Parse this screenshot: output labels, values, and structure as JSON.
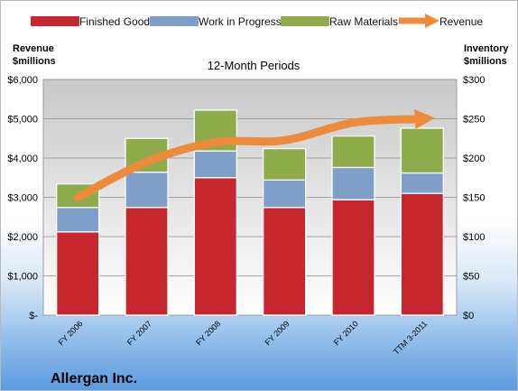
{
  "colors": {
    "finished_goods": "#c6262e",
    "work_in_progress": "#7f9fc9",
    "raw_materials": "#8fac4a",
    "revenue": "#ee8a3c"
  },
  "chart_data": {
    "type": "bar",
    "stacked": true,
    "title": "12-Month Periods",
    "company": "Allergan Inc.",
    "left_axis_title": [
      "Revenue",
      "$millions"
    ],
    "right_axis_title": [
      "Inventory",
      "$millions"
    ],
    "categories": [
      "FY 2006",
      "FY 2007",
      "FY 2008",
      "FY 2009",
      "FY 2010",
      "TTM 3-2011"
    ],
    "left_ticks": [
      "$-",
      "$1,000",
      "$2,000",
      "$3,000",
      "$4,000",
      "$5,000",
      "$6,000"
    ],
    "right_ticks": [
      "$0",
      "$50",
      "$100",
      "$150",
      "$200",
      "$250",
      "$300"
    ],
    "left_ylim": [
      0,
      6000
    ],
    "right_ylim": [
      0,
      300
    ],
    "legend_position": "top",
    "series": [
      {
        "name": "Finished Goods",
        "axis": "right",
        "kind": "bar",
        "values": [
          106,
          137,
          175,
          137,
          147,
          155
        ]
      },
      {
        "name": "Work in Progress",
        "axis": "right",
        "kind": "bar",
        "values": [
          31,
          45,
          34,
          35,
          41,
          26
        ]
      },
      {
        "name": "Raw Materials",
        "axis": "right",
        "kind": "bar",
        "values": [
          30,
          43,
          52,
          40,
          40,
          57
        ]
      },
      {
        "name": "Revenue",
        "axis": "left",
        "kind": "line",
        "values": [
          3000,
          3900,
          4400,
          4450,
          4900,
          5000
        ]
      }
    ]
  }
}
